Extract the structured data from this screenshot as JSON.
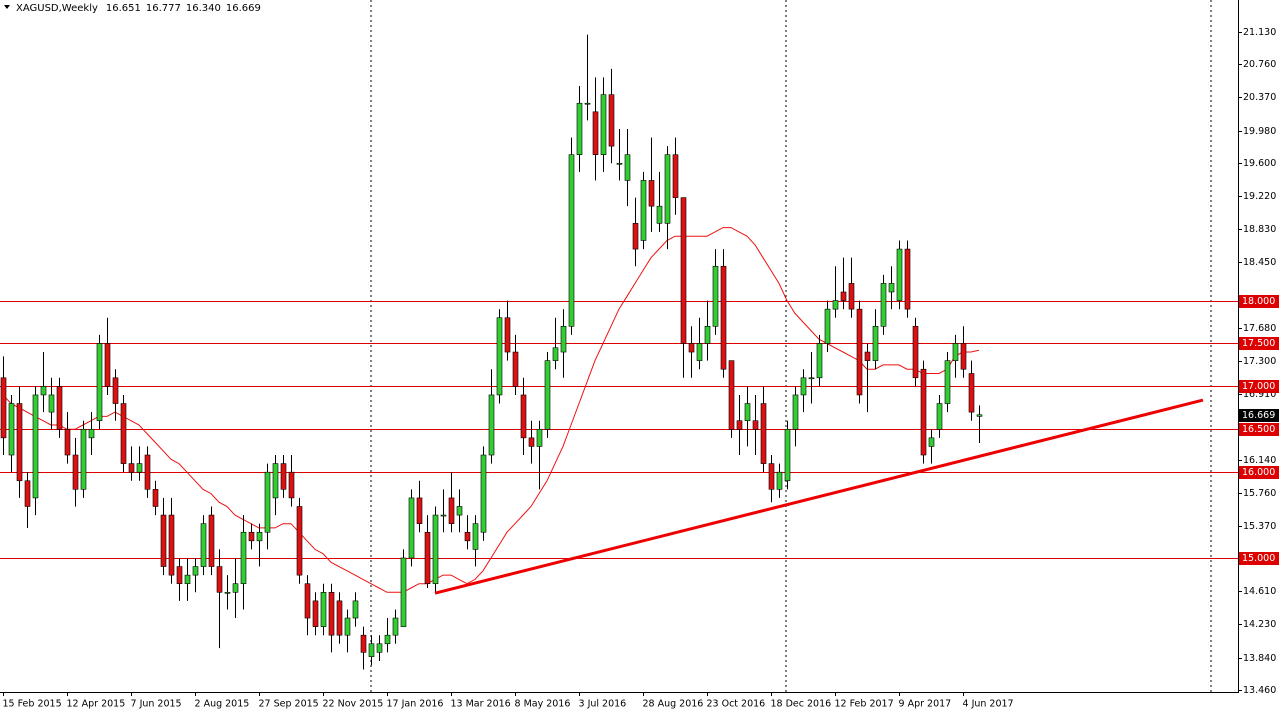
{
  "chart_data": {
    "type": "candlestick",
    "title": "XAGUSD,Weekly",
    "title_values": [
      "16.651",
      "16.777",
      "16.340",
      "16.669"
    ],
    "up_color": "#33cc33",
    "down_color": "#dd1111",
    "ylim": [
      13.438,
      21.503
    ],
    "yticks": [
      {
        "value": 21.13,
        "label": "21.130"
      },
      {
        "value": 20.76,
        "label": "20.760"
      },
      {
        "value": 20.37,
        "label": "20.370"
      },
      {
        "value": 19.98,
        "label": "19.980"
      },
      {
        "value": 19.6,
        "label": "19.600"
      },
      {
        "value": 19.22,
        "label": "19.220"
      },
      {
        "value": 18.83,
        "label": "18.830"
      },
      {
        "value": 18.45,
        "label": "18.450"
      },
      {
        "value": 17.68,
        "label": "17.680"
      },
      {
        "value": 17.3,
        "label": "17.300"
      },
      {
        "value": 16.91,
        "label": "16.910"
      },
      {
        "value": 16.14,
        "label": "16.140"
      },
      {
        "value": 15.76,
        "label": "15.760"
      },
      {
        "value": 15.37,
        "label": "15.370"
      },
      {
        "value": 14.61,
        "label": "14.610"
      },
      {
        "value": 14.23,
        "label": "14.230"
      },
      {
        "value": 13.84,
        "label": "13.840"
      },
      {
        "value": 13.46,
        "label": "13.460"
      }
    ],
    "levels": [
      {
        "value": 18,
        "label": "18.000"
      },
      {
        "value": 17.5,
        "label": "17.500"
      },
      {
        "value": 17,
        "label": "17.000"
      },
      {
        "value": 16.5,
        "label": "16.500"
      },
      {
        "value": 16,
        "label": "16.000"
      },
      {
        "value": 15,
        "label": "15.000"
      }
    ],
    "level_color": "#dd0000",
    "current_price": {
      "value": 16.669,
      "label": "16.669"
    },
    "categories": [
      "15 Feb 2015",
      null,
      null,
      null,
      null,
      null,
      null,
      null,
      "12 Apr 2015",
      null,
      null,
      null,
      null,
      null,
      null,
      null,
      "7 Jun 2015",
      null,
      null,
      null,
      null,
      null,
      null,
      null,
      "2 Aug 2015",
      null,
      null,
      null,
      null,
      null,
      null,
      null,
      "27 Sep 2015",
      null,
      null,
      null,
      null,
      null,
      null,
      null,
      "22 Nov 2015",
      null,
      null,
      null,
      null,
      null,
      null,
      null,
      "17 Jan 2016",
      null,
      null,
      null,
      null,
      null,
      null,
      null,
      "13 Mar 2016",
      null,
      null,
      null,
      null,
      null,
      null,
      null,
      "8 May 2016",
      null,
      null,
      null,
      null,
      null,
      null,
      null,
      "3 Jul 2016",
      null,
      null,
      null,
      null,
      null,
      null,
      null,
      "28 Aug 2016",
      null,
      null,
      null,
      null,
      null,
      null,
      null,
      "23 Oct 2016",
      null,
      null,
      null,
      null,
      null,
      null,
      null,
      "18 Dec 2016",
      null,
      null,
      null,
      null,
      null,
      null,
      null,
      "12 Feb 2017",
      null,
      null,
      null,
      null,
      null,
      null,
      null,
      "9 Apr 2017",
      null,
      null,
      null,
      null,
      null,
      null,
      null,
      "4 Jun 2017",
      null,
      null
    ],
    "candles": [
      [
        17.1,
        17.35,
        16.2,
        16.4
      ],
      [
        16.2,
        16.9,
        16.0,
        16.8
      ],
      [
        16.8,
        17.0,
        15.7,
        15.9
      ],
      [
        15.9,
        16.0,
        15.35,
        15.6
      ],
      [
        15.7,
        17.0,
        15.5,
        16.9
      ],
      [
        16.9,
        17.4,
        16.7,
        17.0
      ],
      [
        16.7,
        17.1,
        16.5,
        16.9
      ],
      [
        17.0,
        17.1,
        16.4,
        16.5
      ],
      [
        16.5,
        16.7,
        16.1,
        16.2
      ],
      [
        16.2,
        16.4,
        15.6,
        15.8
      ],
      [
        15.8,
        16.6,
        15.7,
        16.5
      ],
      [
        16.4,
        16.7,
        16.2,
        16.5
      ],
      [
        16.6,
        17.6,
        16.5,
        17.5
      ],
      [
        17.5,
        17.8,
        16.9,
        17.0
      ],
      [
        17.1,
        17.2,
        16.6,
        16.8
      ],
      [
        16.8,
        16.9,
        16.0,
        16.1
      ],
      [
        16.1,
        16.3,
        15.9,
        16.0
      ],
      [
        16.0,
        16.3,
        15.9,
        16.1
      ],
      [
        16.2,
        16.3,
        15.7,
        15.8
      ],
      [
        15.8,
        15.9,
        15.5,
        15.6
      ],
      [
        15.5,
        15.7,
        14.8,
        14.9
      ],
      [
        15.5,
        15.7,
        14.7,
        14.8
      ],
      [
        14.9,
        15.0,
        14.5,
        14.7
      ],
      [
        14.7,
        15.0,
        14.5,
        14.8
      ],
      [
        14.8,
        15.0,
        14.6,
        14.9
      ],
      [
        14.9,
        15.5,
        14.8,
        15.4
      ],
      [
        15.5,
        15.6,
        14.8,
        14.9
      ],
      [
        14.9,
        15.1,
        13.95,
        14.6
      ],
      [
        14.6,
        14.8,
        14.4,
        14.6
      ],
      [
        14.6,
        15.0,
        14.3,
        14.7
      ],
      [
        14.7,
        15.5,
        14.4,
        15.3
      ],
      [
        15.3,
        15.4,
        15.1,
        15.2
      ],
      [
        15.2,
        15.4,
        14.9,
        15.3
      ],
      [
        15.3,
        16.1,
        15.1,
        16.0
      ],
      [
        15.7,
        16.2,
        15.5,
        16.1
      ],
      [
        16.1,
        16.2,
        15.7,
        15.8
      ],
      [
        16.0,
        16.2,
        15.6,
        15.7
      ],
      [
        15.6,
        15.7,
        14.7,
        14.8
      ],
      [
        14.7,
        14.8,
        14.1,
        14.3
      ],
      [
        14.5,
        14.6,
        14.1,
        14.2
      ],
      [
        14.2,
        14.7,
        14.1,
        14.6
      ],
      [
        14.6,
        14.7,
        13.9,
        14.1
      ],
      [
        14.5,
        14.6,
        14.0,
        14.1
      ],
      [
        14.1,
        14.4,
        13.9,
        14.3
      ],
      [
        14.3,
        14.6,
        14.2,
        14.5
      ],
      [
        14.1,
        14.2,
        13.7,
        13.9
      ],
      [
        13.85,
        14.1,
        13.75,
        14.0
      ],
      [
        13.9,
        14.1,
        13.8,
        14.0
      ],
      [
        14.0,
        14.3,
        13.9,
        14.1
      ],
      [
        14.1,
        14.4,
        14.0,
        14.3
      ],
      [
        14.2,
        15.1,
        14.2,
        15.0
      ],
      [
        15.0,
        15.8,
        14.9,
        15.7
      ],
      [
        15.7,
        15.9,
        15.3,
        15.4
      ],
      [
        15.3,
        15.5,
        14.65,
        14.7
      ],
      [
        14.7,
        15.6,
        14.6,
        15.5
      ],
      [
        15.5,
        15.8,
        15.3,
        15.5
      ],
      [
        15.7,
        16.0,
        15.3,
        15.4
      ],
      [
        15.5,
        15.8,
        15.3,
        15.6
      ],
      [
        15.3,
        15.5,
        15.1,
        15.2
      ],
      [
        15.1,
        15.5,
        14.9,
        15.4
      ],
      [
        15.3,
        16.3,
        15.2,
        16.2
      ],
      [
        16.2,
        17.2,
        16.1,
        16.9
      ],
      [
        16.9,
        17.9,
        16.8,
        17.8
      ],
      [
        17.8,
        18.0,
        17.3,
        17.4
      ],
      [
        17.4,
        17.6,
        16.9,
        17.0
      ],
      [
        16.9,
        17.1,
        16.2,
        16.4
      ],
      [
        16.4,
        16.6,
        16.1,
        16.3
      ],
      [
        16.3,
        16.6,
        15.8,
        16.5
      ],
      [
        16.5,
        17.4,
        16.4,
        17.3
      ],
      [
        17.3,
        17.8,
        17.2,
        17.45
      ],
      [
        17.4,
        17.9,
        17.1,
        17.7
      ],
      [
        17.7,
        19.9,
        17.6,
        19.7
      ],
      [
        19.7,
        20.5,
        19.5,
        20.3
      ],
      [
        20.3,
        21.1,
        20.1,
        20.3
      ],
      [
        20.2,
        20.6,
        19.4,
        19.7
      ],
      [
        19.7,
        20.6,
        19.5,
        20.4
      ],
      [
        20.4,
        20.7,
        19.6,
        19.8
      ],
      [
        19.6,
        20.0,
        19.4,
        19.6
      ],
      [
        19.4,
        20.0,
        19.1,
        19.7
      ],
      [
        18.9,
        19.2,
        18.4,
        18.6
      ],
      [
        18.7,
        19.5,
        18.6,
        19.4
      ],
      [
        19.4,
        19.9,
        18.8,
        19.1
      ],
      [
        18.9,
        19.5,
        18.8,
        19.1
      ],
      [
        18.9,
        19.8,
        18.6,
        19.7
      ],
      [
        19.7,
        19.9,
        19.0,
        19.2
      ],
      [
        19.2,
        19.2,
        17.1,
        17.5
      ],
      [
        17.5,
        17.7,
        17.1,
        17.4
      ],
      [
        17.3,
        17.8,
        17.2,
        17.5
      ],
      [
        17.5,
        18.0,
        17.3,
        17.7
      ],
      [
        17.7,
        18.6,
        17.6,
        18.4
      ],
      [
        18.4,
        18.6,
        17.1,
        17.2
      ],
      [
        17.3,
        17.3,
        16.4,
        16.5
      ],
      [
        16.6,
        16.9,
        16.2,
        16.5
      ],
      [
        16.6,
        17.0,
        16.3,
        16.8
      ],
      [
        16.6,
        16.9,
        16.2,
        16.5
      ],
      [
        16.8,
        17.0,
        16.0,
        16.1
      ],
      [
        16.1,
        16.2,
        15.65,
        15.8
      ],
      [
        15.8,
        16.1,
        15.7,
        16.0
      ],
      [
        15.9,
        16.6,
        15.8,
        16.5
      ],
      [
        16.5,
        17.0,
        16.3,
        16.9
      ],
      [
        16.9,
        17.2,
        16.7,
        17.1
      ],
      [
        17.1,
        17.4,
        16.8,
        17.1
      ],
      [
        17.1,
        17.6,
        17.0,
        17.5
      ],
      [
        17.5,
        18.0,
        17.4,
        17.9
      ],
      [
        17.9,
        18.4,
        17.8,
        18.0
      ],
      [
        18.1,
        18.5,
        17.9,
        18.0
      ],
      [
        18.2,
        18.5,
        17.8,
        17.9
      ],
      [
        17.9,
        18.0,
        16.8,
        16.9
      ],
      [
        17.4,
        17.5,
        16.7,
        17.3
      ],
      [
        17.3,
        17.9,
        17.2,
        17.7
      ],
      [
        17.7,
        18.3,
        17.6,
        18.2
      ],
      [
        18.1,
        18.4,
        17.9,
        18.2
      ],
      [
        18.0,
        18.7,
        17.9,
        18.6
      ],
      [
        18.6,
        18.7,
        17.8,
        17.9
      ],
      [
        17.7,
        17.8,
        17.0,
        17.1
      ],
      [
        17.2,
        17.3,
        16.1,
        16.2
      ],
      [
        16.3,
        16.5,
        16.1,
        16.4
      ],
      [
        16.5,
        16.9,
        16.4,
        16.8
      ],
      [
        16.8,
        17.4,
        16.7,
        17.3
      ],
      [
        17.3,
        17.6,
        17.1,
        17.5
      ],
      [
        17.5,
        17.7,
        17.1,
        17.2
      ],
      [
        17.15,
        17.3,
        16.6,
        16.7
      ],
      [
        16.651,
        16.777,
        16.34,
        16.669
      ]
    ],
    "ma": {
      "color": "#ee1111",
      "values": [
        16.9,
        16.8,
        16.75,
        16.7,
        16.65,
        16.6,
        16.55,
        16.55,
        16.5,
        16.5,
        16.55,
        16.6,
        16.65,
        16.65,
        16.7,
        16.65,
        16.6,
        16.55,
        16.45,
        16.35,
        16.25,
        16.15,
        16.1,
        16.0,
        15.9,
        15.8,
        15.75,
        15.65,
        15.6,
        15.5,
        15.45,
        15.4,
        15.35,
        15.35,
        15.35,
        15.4,
        15.4,
        15.3,
        15.2,
        15.1,
        15.05,
        14.95,
        14.9,
        14.85,
        14.8,
        14.75,
        14.7,
        14.65,
        14.6,
        14.6,
        14.6,
        14.65,
        14.7,
        14.7,
        14.75,
        14.8,
        14.8,
        14.75,
        14.7,
        14.75,
        14.85,
        15.0,
        15.15,
        15.3,
        15.4,
        15.5,
        15.6,
        15.75,
        15.9,
        16.1,
        16.3,
        16.55,
        16.8,
        17.05,
        17.3,
        17.5,
        17.7,
        17.9,
        18.05,
        18.2,
        18.35,
        18.5,
        18.6,
        18.7,
        18.75,
        18.75,
        18.75,
        18.75,
        18.75,
        18.8,
        18.85,
        18.85,
        18.8,
        18.75,
        18.65,
        18.5,
        18.35,
        18.2,
        18.0,
        17.85,
        17.75,
        17.65,
        17.55,
        17.5,
        17.45,
        17.4,
        17.35,
        17.3,
        17.2,
        17.2,
        17.25,
        17.25,
        17.25,
        17.2,
        17.2,
        17.15,
        17.15,
        17.15,
        17.2,
        17.35,
        17.4,
        17.4,
        17.42
      ]
    },
    "trendline": {
      "color": "#ee0000",
      "x": [
        54,
        150
      ],
      "values": [
        14.59,
        16.84
      ]
    }
  }
}
